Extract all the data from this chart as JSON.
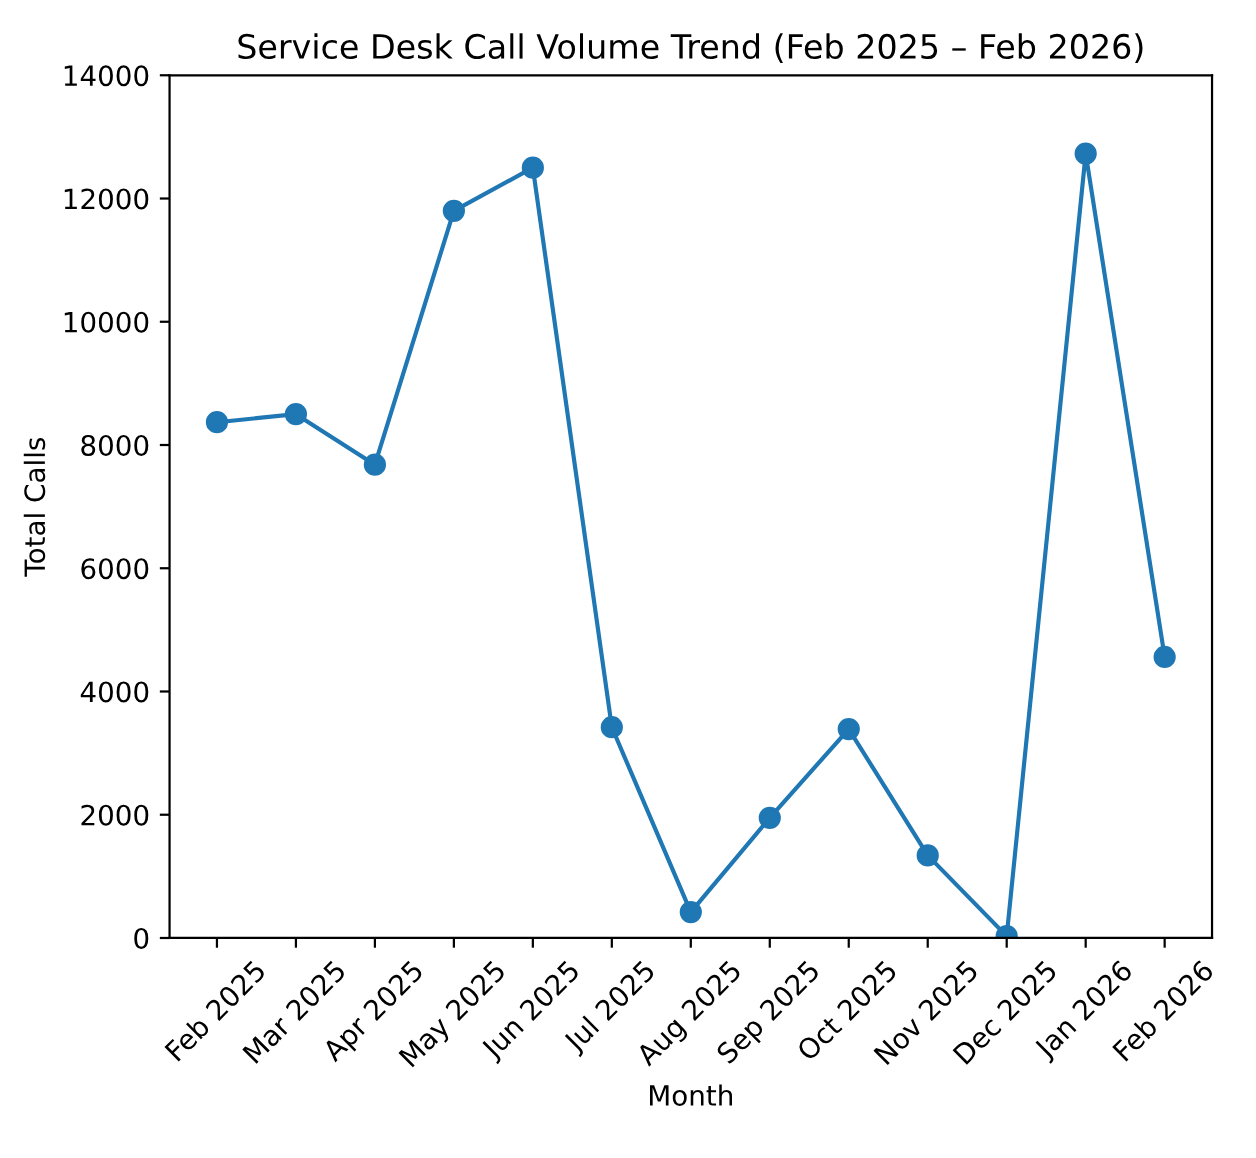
{
  "chart_data": {
    "type": "line",
    "title": "Service Desk Call Volume Trend (Feb 2025 – Feb 2026)",
    "xlabel": "Month",
    "ylabel": "Total Calls",
    "categories": [
      "Feb 2025",
      "Mar 2025",
      "Apr 2025",
      "May 2025",
      "Jun 2025",
      "Jul 2025",
      "Aug 2025",
      "Sep 2025",
      "Oct 2025",
      "Nov 2025",
      "Dec 2025",
      "Jan 2026",
      "Feb 2026"
    ],
    "series": [
      {
        "color": "#1f77b4",
        "values": [
          8370,
          8500,
          7680,
          11800,
          12500,
          3420,
          420,
          1950,
          3390,
          1340,
          30,
          12730,
          4560
        ]
      }
    ],
    "ylim": [
      0,
      14000
    ],
    "yticks": [
      0,
      2000,
      4000,
      6000,
      8000,
      10000,
      12000,
      14000
    ],
    "marker": "circle",
    "line_style": "solid",
    "grid": false
  }
}
